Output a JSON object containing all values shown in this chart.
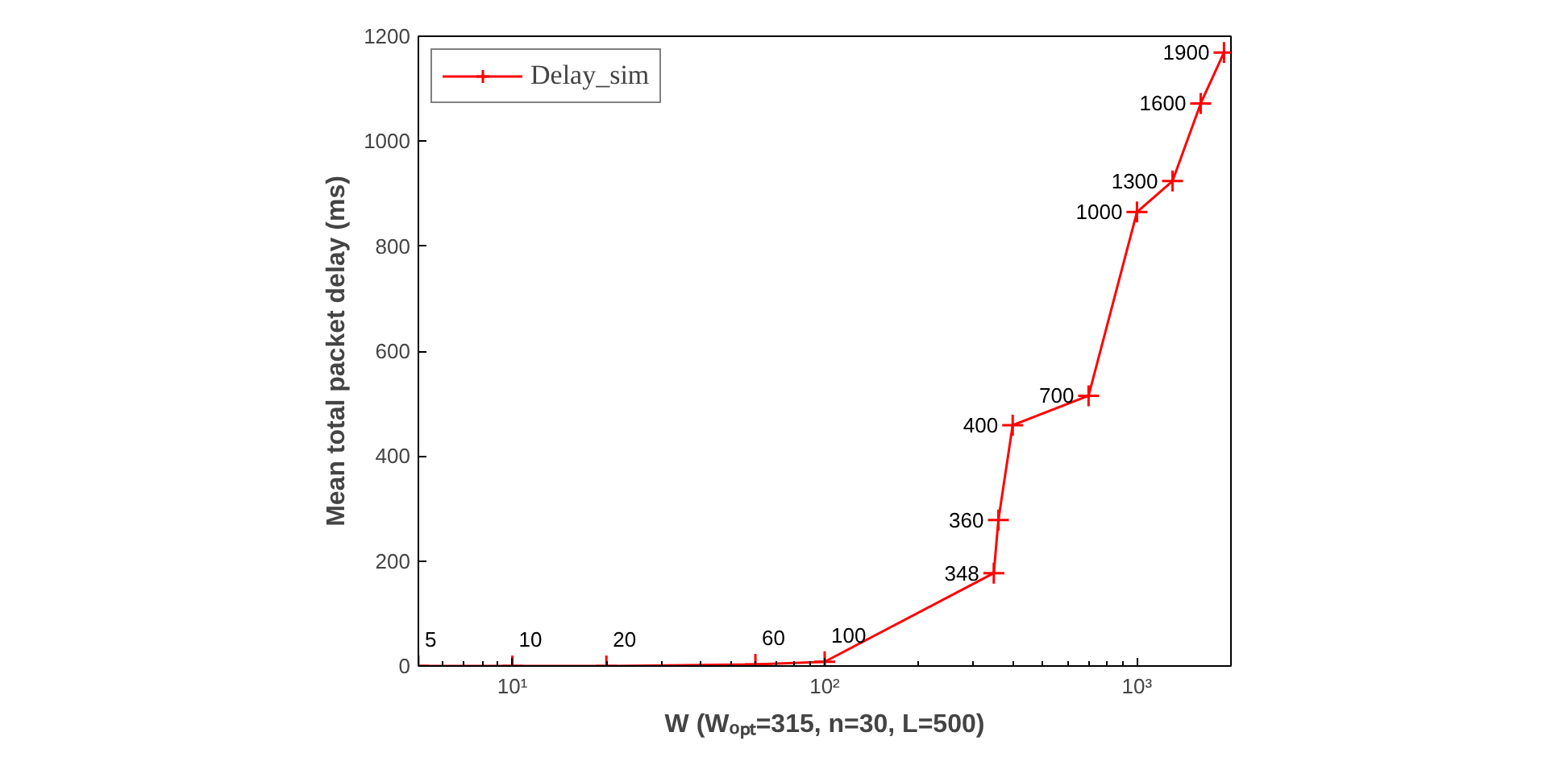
{
  "chart_data": {
    "type": "line",
    "xlabel": "W (Wₒₚₜ=315, n=30, L=500)",
    "ylabel": "Mean total packet delay (ms)",
    "x": [
      5,
      10,
      20,
      60,
      100,
      348,
      360,
      400,
      700,
      1000,
      1300,
      1600,
      1900
    ],
    "series": [
      {
        "name": "Delay_sim",
        "color": "#ff0000",
        "values": [
          0,
          0,
          0,
          3,
          8,
          177,
          278,
          459,
          515,
          865,
          924,
          1072,
          1169
        ]
      }
    ],
    "xlim": [
      5,
      2000
    ],
    "xticks": [
      {
        "value": 10,
        "label": "10¹"
      },
      {
        "value": 100,
        "label": "10²"
      },
      {
        "value": 1000,
        "label": "10³"
      }
    ],
    "ylim": [
      0,
      1200
    ],
    "yticks": [
      0,
      200,
      400,
      600,
      800,
      1000,
      1200
    ],
    "log": "x",
    "grid": false,
    "legend": "top left",
    "marker": "cross",
    "line_style": "solid",
    "annotations": [
      {
        "text": "5",
        "x": 5,
        "y": 0
      },
      {
        "text": "10",
        "x": 10,
        "y": 0
      },
      {
        "text": "20",
        "x": 20,
        "y": 0
      },
      {
        "text": "60",
        "x": 60,
        "y": 3
      },
      {
        "text": "100",
        "x": 100,
        "y": 8
      },
      {
        "text": "348",
        "x": 348,
        "y": 177
      },
      {
        "text": "360",
        "x": 360,
        "y": 278
      },
      {
        "text": "400",
        "x": 400,
        "y": 459
      },
      {
        "text": "700",
        "x": 700,
        "y": 515
      },
      {
        "text": "1000",
        "x": 1000,
        "y": 865
      },
      {
        "text": "1300",
        "x": 1300,
        "y": 924
      },
      {
        "text": "1600",
        "x": 1600,
        "y": 1072
      },
      {
        "text": "1900",
        "x": 1900,
        "y": 1169
      }
    ]
  }
}
